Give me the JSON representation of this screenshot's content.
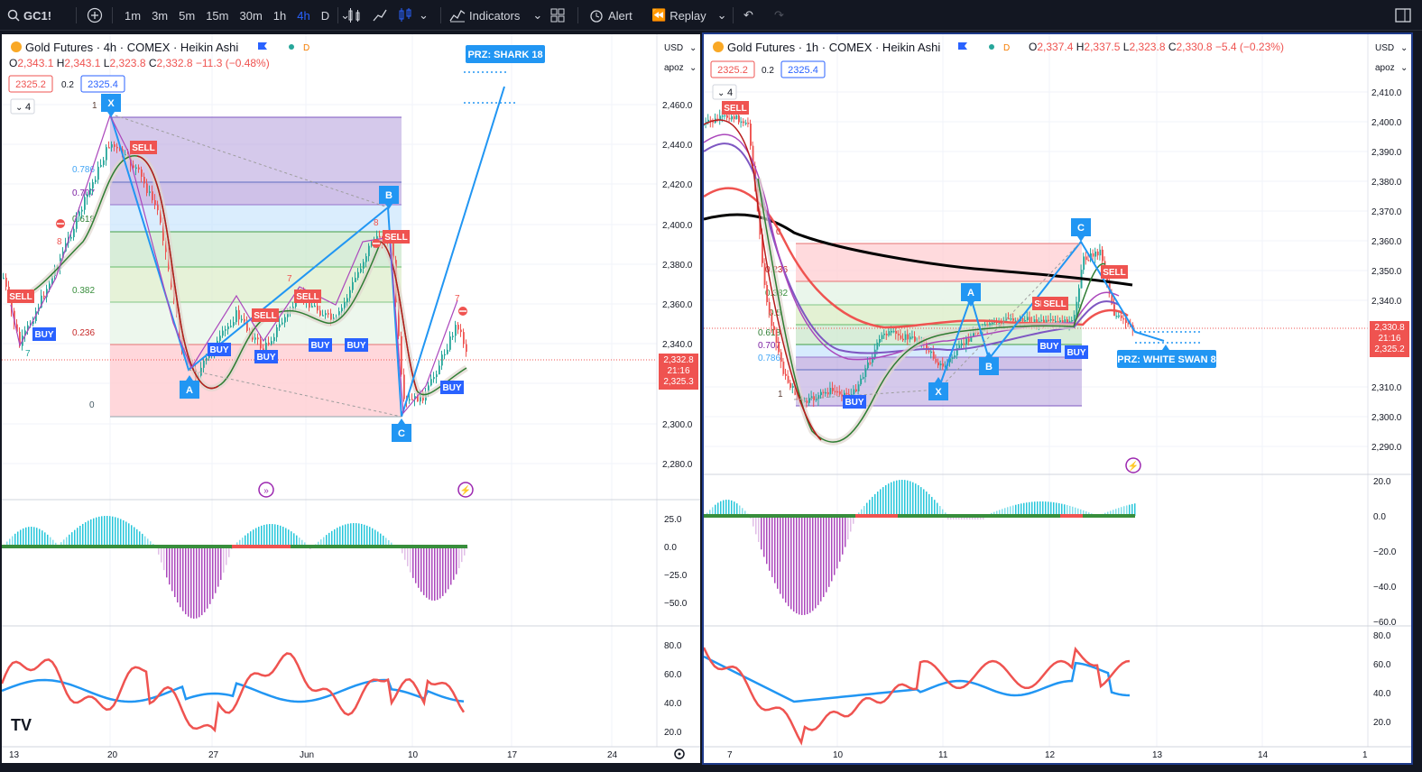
{
  "toolbar": {
    "symbol": "GC1!",
    "timeframes": [
      "1m",
      "3m",
      "5m",
      "15m",
      "30m",
      "1h",
      "4h",
      "D"
    ],
    "active_timeframe": "4h",
    "indicators_label": "Indicators",
    "alert_label": "Alert",
    "replay_label": "Replay"
  },
  "left_chart": {
    "title": "Gold Futures · 4h · COMEX · Heikin Ashi",
    "badge": "D",
    "ohlc": {
      "o": "2,343.1",
      "h": "2,343.1",
      "l": "2,323.8",
      "c": "2,332.8",
      "chg": "−11.3 (−0.48%)"
    },
    "box1": "2325.2",
    "box_mid": "0.2",
    "box2": "2325.4",
    "collapse_count": "4",
    "currency": "USD",
    "scale_mode": "apoz",
    "price_axis": [
      "2,460.0",
      "2,440.0",
      "2,420.0",
      "2,400.0",
      "2,380.0",
      "2,360.0",
      "2,340.0",
      "2,300.0",
      "2,280.0"
    ],
    "last_price": "2,332.8",
    "countdown": "21:16",
    "second_price": "2,325.3",
    "osc_axis": [
      "25.0",
      "0.0",
      "−25.0",
      "−50.0"
    ],
    "rsi_axis": [
      "80.0",
      "60.0",
      "40.0",
      "20.0"
    ],
    "time_axis": [
      "13",
      "20",
      "27",
      "Jun",
      "10",
      "17",
      "24"
    ],
    "fib_labels": [
      "1",
      "0.786",
      "0.707",
      "0.618",
      "0.382",
      "0.236",
      "0"
    ],
    "pattern_labels": {
      "x": "X",
      "a": "A",
      "b": "B",
      "c": "C"
    },
    "prz": "PRZ: SHARK 18",
    "signals": [
      "SELL",
      "BUY",
      "SELL",
      "BUY",
      "SELL",
      "SELL",
      "BUY",
      "BUY",
      "BUY",
      "SELL",
      "BUY"
    ],
    "small_nums": [
      "8",
      "8",
      "7",
      "7",
      "7",
      "8",
      "7",
      "8",
      "7"
    ]
  },
  "right_chart": {
    "title": "Gold Futures · 1h · COMEX · Heikin Ashi",
    "badge": "D",
    "ohlc": {
      "o": "2,337.4",
      "h": "2,337.5",
      "l": "2,323.8",
      "c": "2,330.8",
      "chg": "−5.4 (−0.23%)"
    },
    "box1": "2325.2",
    "box_mid": "0.2",
    "box2": "2325.4",
    "collapse_count": "4",
    "currency": "USD",
    "scale_mode": "apoz",
    "price_axis": [
      "2,410.0",
      "2,400.0",
      "2,390.0",
      "2,380.0",
      "2,370.0",
      "2,360.0",
      "2,350.0",
      "2,340.0",
      "2,310.0",
      "2,300.0",
      "2,290.0"
    ],
    "last_price": "2,330.8",
    "countdown": "21:16",
    "second_price": "2,325.2",
    "osc_axis": [
      "20.0",
      "0.0",
      "−20.0",
      "−40.0",
      "−60.0"
    ],
    "rsi_axis": [
      "80.0",
      "60.0",
      "40.0",
      "20.0"
    ],
    "time_axis": [
      "7",
      "10",
      "11",
      "12",
      "13",
      "14",
      "1"
    ],
    "fib_labels": [
      "0.618",
      "0.707",
      "0.786",
      "1",
      "0",
      "0.236",
      "0.382",
      "0.5"
    ],
    "pattern_labels": {
      "x": "X",
      "a": "A",
      "b": "B",
      "c": "C"
    },
    "prz": "PRZ: WHITE SWAN 8",
    "signals": [
      "SELL",
      "BUY",
      "SELL",
      "SELL",
      "BUY",
      "BUY",
      "SELL"
    ]
  },
  "colors": {
    "up": "#26a69a",
    "down": "#ef5350",
    "accent": "#2962ff",
    "pattern": "#2196f3",
    "fib_green": "#c8e6c9",
    "fib_red": "#ffcdd2",
    "fib_purple": "#d1c4e9"
  }
}
